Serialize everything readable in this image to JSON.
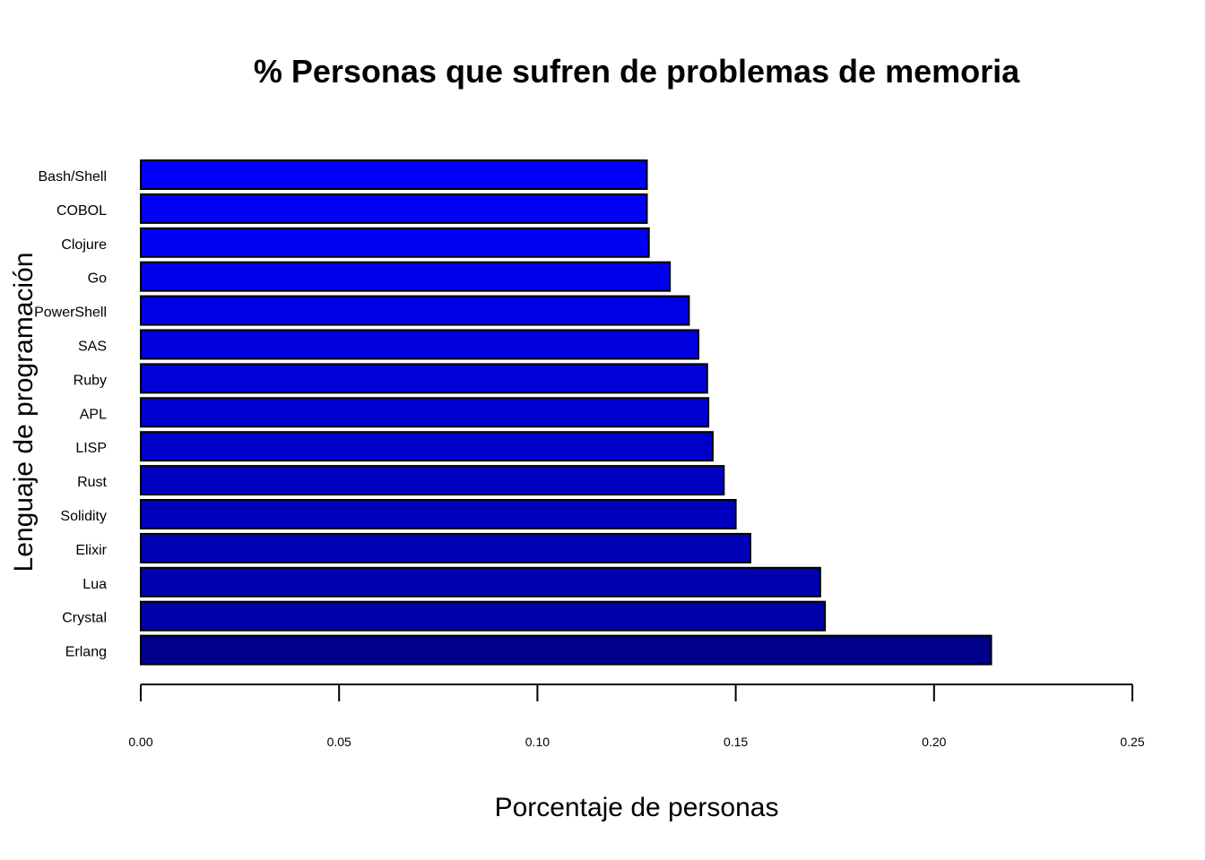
{
  "chart_data": {
    "type": "bar",
    "orientation": "horizontal",
    "title": "% Personas que sufren de problemas de memoria",
    "xlabel": "Porcentaje de personas",
    "ylabel": "Lenguaje de programación",
    "categories": [
      "Bash/Shell",
      "COBOL",
      "Clojure",
      "Go",
      "PowerShell",
      "SAS",
      "Ruby",
      "APL",
      "LISP",
      "Rust",
      "Solidity",
      "Elixir",
      "Lua",
      "Crystal",
      "Erlang"
    ],
    "values": [
      0.1276,
      0.1276,
      0.1281,
      0.1334,
      0.1382,
      0.1406,
      0.1428,
      0.1431,
      0.1442,
      0.147,
      0.15,
      0.1537,
      0.1713,
      0.1725,
      0.2144
    ],
    "colors": [
      "#0000ff",
      "#0000f8",
      "#0000f2",
      "#0000eb",
      "#0000e4",
      "#0000de",
      "#0000d7",
      "#0000d0",
      "#0000ca",
      "#0000c3",
      "#0000bc",
      "#0000b6",
      "#0000af",
      "#0000a8",
      "#00008b"
    ],
    "xlim": [
      0,
      0.25
    ],
    "xticks": [
      0.0,
      0.05,
      0.1,
      0.15,
      0.2,
      0.25
    ],
    "xtick_labels": [
      "0.00",
      "0.05",
      "0.10",
      "0.15",
      "0.20",
      "0.25"
    ],
    "grid": false,
    "legend": "none"
  }
}
